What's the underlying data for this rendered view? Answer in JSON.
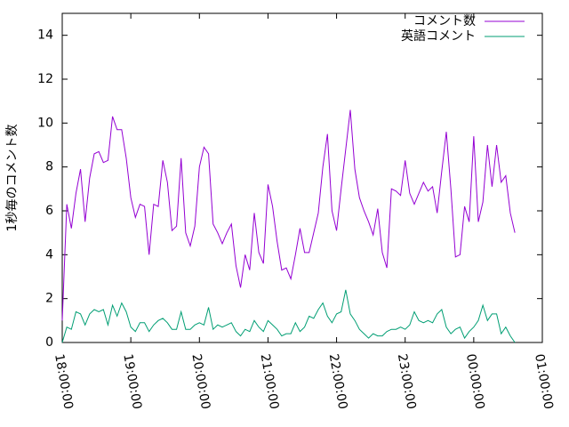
{
  "chart_data": {
    "type": "line",
    "y_label": "1秒毎のコメント数",
    "x": [
      0,
      4,
      8,
      12,
      16,
      20,
      24,
      28,
      32,
      36,
      40,
      44,
      48,
      52,
      56,
      60,
      64,
      68,
      72,
      76,
      80,
      84,
      88,
      92,
      96,
      100,
      104,
      108,
      112,
      116,
      120,
      124,
      128,
      132,
      136,
      140,
      144,
      148,
      152,
      156,
      160,
      164,
      168,
      172,
      176,
      180,
      184,
      188,
      192,
      196,
      200,
      204,
      208,
      212,
      216,
      220,
      224,
      228,
      232,
      236,
      240,
      244,
      248,
      252,
      256,
      260,
      264,
      268,
      272,
      276,
      280,
      284,
      288,
      292,
      296,
      300,
      304,
      308,
      312,
      316,
      320,
      324,
      328,
      332,
      336,
      340,
      344,
      348,
      352,
      356,
      360,
      364,
      368,
      372,
      376,
      380,
      384,
      388,
      392,
      396
    ],
    "series": [
      {
        "name": "コメント数",
        "color": "#9400d3",
        "values": [
          1.0,
          6.3,
          5.2,
          6.8,
          7.9,
          5.5,
          7.5,
          8.6,
          8.7,
          8.2,
          8.3,
          10.3,
          9.7,
          9.7,
          8.4,
          6.6,
          5.7,
          6.3,
          6.2,
          4.0,
          6.3,
          6.2,
          8.3,
          7.3,
          5.1,
          5.3,
          8.4,
          5.0,
          4.4,
          5.3,
          8.0,
          8.9,
          8.6,
          5.4,
          5.0,
          4.5,
          5.0,
          5.4,
          3.5,
          2.5,
          4.0,
          3.3,
          5.9,
          4.1,
          3.6,
          7.2,
          6.2,
          4.6,
          3.3,
          3.4,
          2.9,
          4.0,
          5.2,
          4.1,
          4.1,
          5.0,
          5.9,
          8.0,
          9.5,
          6.0,
          5.1,
          7.0,
          8.8,
          10.6,
          7.9,
          6.6,
          6.0,
          5.5,
          4.9,
          6.1,
          4.1,
          3.4,
          7.0,
          6.9,
          6.7,
          8.3,
          6.8,
          6.3,
          6.8,
          7.3,
          6.9,
          7.1,
          5.9,
          7.8,
          9.6,
          7.0,
          3.9,
          4.0,
          6.2,
          5.5,
          9.4,
          5.5,
          6.4,
          9.0,
          7.1,
          9.0,
          7.3,
          7.6,
          5.9,
          5.0
        ]
      },
      {
        "name": "英語コメント",
        "color": "#009e73",
        "values": [
          0,
          0.7,
          0.6,
          1.4,
          1.3,
          0.8,
          1.3,
          1.5,
          1.4,
          1.5,
          0.8,
          1.7,
          1.2,
          1.8,
          1.4,
          0.7,
          0.5,
          0.9,
          0.9,
          0.5,
          0.8,
          1.0,
          1.1,
          0.9,
          0.6,
          0.6,
          1.4,
          0.6,
          0.6,
          0.8,
          0.9,
          0.8,
          1.6,
          0.6,
          0.8,
          0.7,
          0.8,
          0.9,
          0.5,
          0.3,
          0.6,
          0.5,
          1.0,
          0.7,
          0.5,
          1.0,
          0.8,
          0.6,
          0.3,
          0.4,
          0.4,
          0.9,
          0.5,
          0.7,
          1.2,
          1.1,
          1.5,
          1.8,
          1.2,
          0.9,
          1.3,
          1.4,
          2.4,
          1.3,
          1.0,
          0.6,
          0.4,
          0.2,
          0.4,
          0.3,
          0.3,
          0.5,
          0.6,
          0.6,
          0.7,
          0.6,
          0.8,
          1.4,
          1.0,
          0.9,
          1.0,
          0.9,
          1.3,
          1.5,
          0.7,
          0.4,
          0.6,
          0.7,
          0.2,
          0.5,
          0.7,
          1.0,
          1.7,
          1.0,
          1.3,
          1.3,
          0.4,
          0.7,
          0.3,
          0.0
        ]
      }
    ],
    "xlim": [
      0,
      420
    ],
    "xticks": [
      {
        "value": 0,
        "label": "18:00:00"
      },
      {
        "value": 60,
        "label": "19:00:00"
      },
      {
        "value": 120,
        "label": "20:00:00"
      },
      {
        "value": 180,
        "label": "21:00:00"
      },
      {
        "value": 240,
        "label": "22:00:00"
      },
      {
        "value": 300,
        "label": "23:00:00"
      },
      {
        "value": 360,
        "label": "00:00:00"
      },
      {
        "value": 420,
        "label": "01:00:00"
      }
    ],
    "ylim": [
      0,
      15
    ],
    "yticks": [
      0,
      2,
      4,
      6,
      8,
      10,
      12,
      14
    ],
    "legend": "top-right"
  }
}
